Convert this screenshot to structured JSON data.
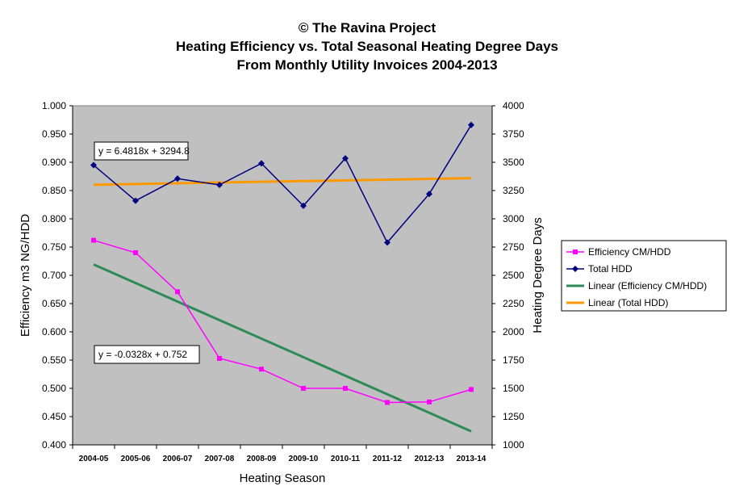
{
  "chart_data": {
    "type": "line",
    "title_lines": [
      "© The Ravina Project",
      "Heating Efficiency vs. Total Seasonal Heating Degree Days",
      "From Monthly Utility Invoices 2004-2013"
    ],
    "xlabel": "Heating Season",
    "ylabel_left": "Efficiency m3 NG/HDD",
    "ylabel_right": "Heating Degree Days",
    "categories": [
      "2004-05",
      "2005-06",
      "2006-07",
      "2007-08",
      "2008-09",
      "2009-10",
      "2010-11",
      "2011-12",
      "2012-13",
      "2013-14"
    ],
    "ylim_left": [
      0.4,
      1.0
    ],
    "yticks_left": [
      "0.400",
      "0.450",
      "0.500",
      "0.550",
      "0.600",
      "0.650",
      "0.700",
      "0.750",
      "0.800",
      "0.850",
      "0.900",
      "0.950",
      "1.000"
    ],
    "ylim_right": [
      1000,
      4000
    ],
    "yticks_right": [
      "1000",
      "1250",
      "1500",
      "1750",
      "2000",
      "2250",
      "2500",
      "2750",
      "3000",
      "3250",
      "3500",
      "3750",
      "4000"
    ],
    "grid": false,
    "legend_position": "right",
    "series": [
      {
        "name": "Efficiency CM/HDD",
        "axis": "left",
        "color": "#ff00ff",
        "marker": "square",
        "values": [
          0.762,
          0.74,
          0.671,
          0.553,
          0.534,
          0.5,
          0.5,
          0.475,
          0.476,
          0.498
        ]
      },
      {
        "name": "Total HDD",
        "axis": "right",
        "color": "#000080",
        "marker": "diamond",
        "values": [
          3475,
          3160,
          3355,
          3300,
          3490,
          3115,
          3535,
          2790,
          3220,
          3830
        ]
      },
      {
        "name": "Linear (Efficiency CM/HDD)",
        "axis": "left",
        "color": "#2e8b57",
        "marker": "none",
        "trend": true,
        "values": [
          0.7192,
          0.6864,
          0.6536,
          0.6208,
          0.588,
          0.5552,
          0.5224,
          0.4896,
          0.4568,
          0.424
        ]
      },
      {
        "name": "Linear (Total HDD)",
        "axis": "right",
        "color": "#ff9900",
        "marker": "none",
        "trend": true,
        "values": [
          3301.3,
          3307.8,
          3314.2,
          3320.7,
          3327.2,
          3333.7,
          3340.2,
          3346.7,
          3353.1,
          3359.6
        ]
      }
    ],
    "annotations": [
      {
        "text": "y = 6.4818x + 3294.8",
        "anchor": "Total HDD trend"
      },
      {
        "text": "y = -0.0328x + 0.752",
        "anchor": "Efficiency trend"
      }
    ],
    "plot_background": "#c0c0c0"
  }
}
